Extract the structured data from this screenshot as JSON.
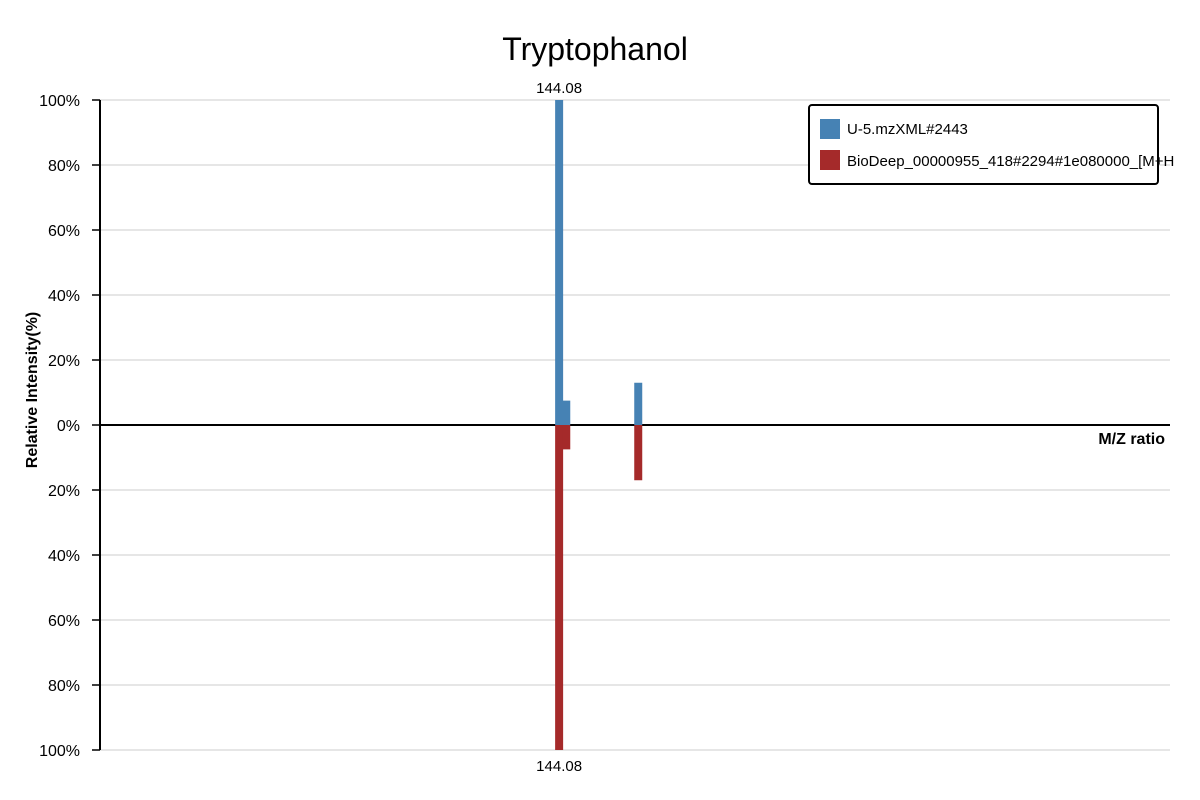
{
  "chart_data": {
    "type": "bar",
    "title": "Tryptophanol",
    "xlabel": "M/Z ratio",
    "ylabel": "Relative Intensity(%)",
    "ylim": [
      -100,
      100
    ],
    "y_ticks": [
      "100%",
      "80%",
      "60%",
      "40%",
      "20%",
      "0%",
      "20%",
      "40%",
      "60%",
      "80%",
      "100%"
    ],
    "grid": true,
    "legend_position": "top-right",
    "series": [
      {
        "name": "U-5.mzXML#2443",
        "color": "#4682B4",
        "direction": "up",
        "peaks": [
          {
            "x": 144.08,
            "y": 100,
            "label": "144.08"
          },
          {
            "x": 144.19,
            "y": 7.5
          },
          {
            "x": 145.3,
            "y": 13
          }
        ]
      },
      {
        "name": "BioDeep_00000955_418#2294#1e080000_[M+H",
        "color": "#A52A2A",
        "direction": "down",
        "peaks": [
          {
            "x": 144.08,
            "y": 100,
            "label": "144.08"
          },
          {
            "x": 144.19,
            "y": 7.5
          },
          {
            "x": 145.3,
            "y": 17
          }
        ]
      }
    ],
    "xlim": [
      137.0,
      153.5
    ]
  }
}
